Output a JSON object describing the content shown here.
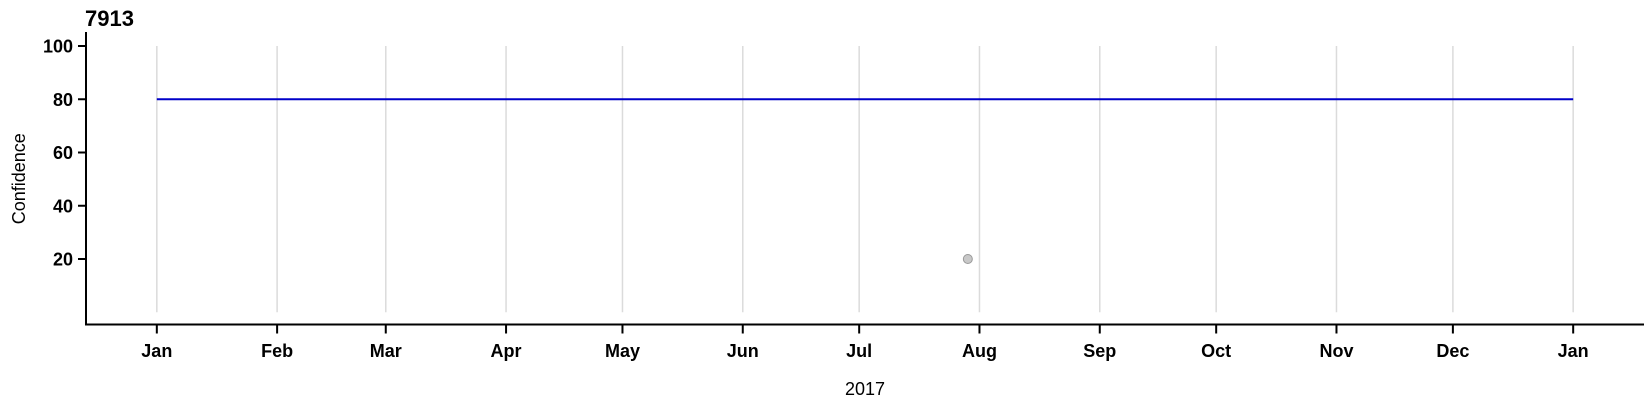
{
  "chart_data": {
    "type": "line",
    "title": "7913",
    "xlabel": "2017",
    "ylabel": "Confidence",
    "x_axis": {
      "unit": "days_from_2017-01-01",
      "lim": [
        -18.25,
        383.25
      ],
      "gridlines": true,
      "ticks": [
        {
          "label": "Jan",
          "day": 0
        },
        {
          "label": "Feb",
          "day": 31
        },
        {
          "label": "Mar",
          "day": 59
        },
        {
          "label": "Apr",
          "day": 90
        },
        {
          "label": "May",
          "day": 120
        },
        {
          "label": "Jun",
          "day": 151
        },
        {
          "label": "Jul",
          "day": 181
        },
        {
          "label": "Aug",
          "day": 212
        },
        {
          "label": "Sep",
          "day": 243
        },
        {
          "label": "Oct",
          "day": 273
        },
        {
          "label": "Nov",
          "day": 304
        },
        {
          "label": "Dec",
          "day": 334
        },
        {
          "label": "Jan",
          "day": 365
        }
      ]
    },
    "y_axis": {
      "lim": [
        -5,
        105
      ],
      "ticks": [
        20,
        40,
        60,
        80,
        100
      ],
      "gridlines": false,
      "grid_span_values": [
        0,
        100
      ]
    },
    "series": [
      {
        "name": "confidence-line",
        "kind": "line",
        "color": "#0000C8",
        "stroke_width": 2,
        "points": [
          {
            "date": "2017-01-01",
            "day": 0,
            "value": 80
          },
          {
            "date": "2018-01-01",
            "day": 365,
            "value": 80
          }
        ]
      },
      {
        "name": "outlier-point",
        "kind": "point",
        "fill": "#C8C8C8",
        "stroke": "#999999",
        "radius": 4.5,
        "points": [
          {
            "date": "2017-07-29",
            "day": 209,
            "value": 20
          }
        ]
      }
    ]
  },
  "colors": {
    "axis": "#000000",
    "gridline": "#DBDBDB",
    "background": "#FFFFFF",
    "text": "#000000"
  }
}
